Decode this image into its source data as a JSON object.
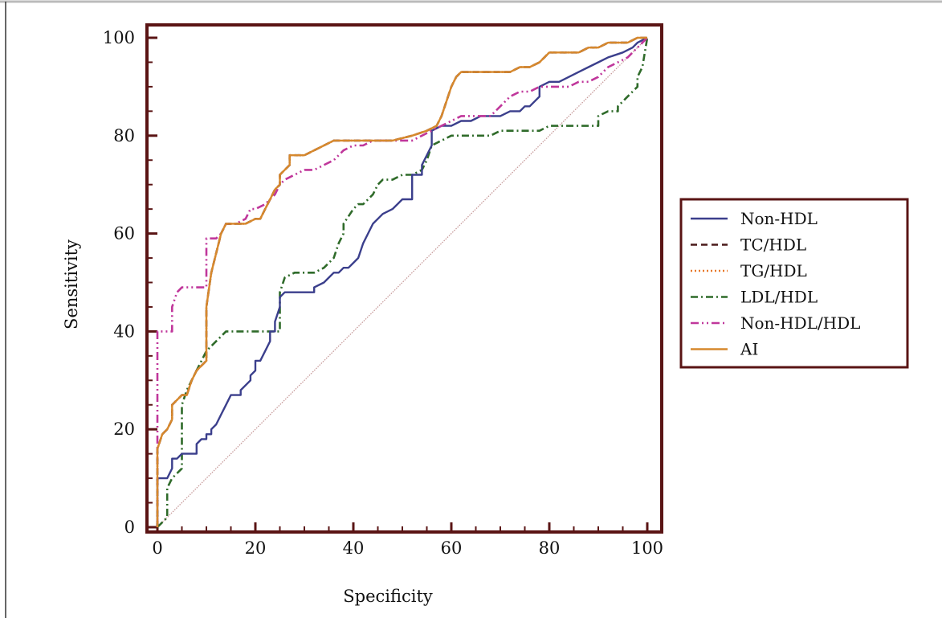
{
  "chart_data": {
    "type": "line",
    "title": "",
    "xlabel": "Specificity",
    "ylabel": "Sensitivity",
    "xlim": [
      0,
      100
    ],
    "ylim": [
      0,
      100
    ],
    "x_ticks": [
      "0",
      "20",
      "40",
      "60",
      "80",
      "100"
    ],
    "y_ticks": [
      "0",
      "20",
      "40",
      "60",
      "80",
      "100"
    ],
    "legend_position": "right",
    "frame_color": "#5a1414",
    "reference_line": {
      "x": [
        0,
        100
      ],
      "y": [
        0,
        100
      ],
      "color": "#c79a9a"
    },
    "series": [
      {
        "name": "Non-HDL",
        "color": "#3b3f8c",
        "dash": "solid",
        "x": [
          0,
          0,
          2,
          3,
          3,
          4,
          5,
          7,
          8,
          8,
          9,
          10,
          10,
          11,
          11,
          12,
          13,
          14,
          15,
          17,
          17,
          19,
          19,
          20,
          20,
          21,
          22,
          23,
          23,
          24,
          24,
          25,
          25,
          26,
          27,
          30,
          32,
          32,
          34,
          35,
          36,
          37,
          38,
          39,
          40,
          41,
          42,
          43,
          44,
          45,
          46,
          48,
          49,
          50,
          52,
          52,
          54,
          54,
          55,
          56,
          56,
          58,
          60,
          62,
          64,
          66,
          68,
          70,
          72,
          73,
          74,
          75,
          76,
          77,
          77,
          78,
          78,
          80,
          82,
          84,
          86,
          88,
          90,
          92,
          95,
          97,
          98,
          100
        ],
        "y": [
          0,
          10,
          10,
          12,
          14,
          14,
          15,
          15,
          15,
          17,
          18,
          18,
          19,
          19,
          20,
          21,
          23,
          25,
          27,
          27,
          28,
          30,
          31,
          32,
          34,
          34,
          36,
          38,
          40,
          40,
          42,
          45,
          47,
          48,
          48,
          48,
          48,
          49,
          50,
          51,
          52,
          52,
          53,
          53,
          54,
          55,
          58,
          60,
          62,
          63,
          64,
          65,
          66,
          67,
          67,
          72,
          72,
          74,
          76,
          78,
          81,
          82,
          82,
          83,
          83,
          84,
          84,
          84,
          85,
          85,
          85,
          86,
          86,
          87,
          87,
          88,
          90,
          91,
          91,
          92,
          93,
          94,
          95,
          96,
          97,
          98,
          99,
          100
        ]
      },
      {
        "name": "TC/HDL",
        "color": "#4a1a1a",
        "dash": "dashed",
        "x": [
          0,
          0,
          1,
          2,
          3,
          3,
          5,
          6,
          7,
          8,
          10,
          10,
          11,
          12,
          13,
          14,
          16,
          18,
          20,
          21,
          22,
          23,
          24,
          25,
          25,
          27,
          27,
          28,
          30,
          32,
          34,
          36,
          38,
          40,
          42,
          45,
          48,
          52,
          55,
          57,
          58,
          59,
          60,
          61,
          62,
          64,
          66,
          68,
          70,
          72,
          74,
          76,
          78,
          79,
          80,
          82,
          84,
          86,
          88,
          90,
          92,
          94,
          96,
          98,
          100
        ],
        "y": [
          0,
          16,
          19,
          20,
          22,
          25,
          27,
          27,
          30,
          32,
          34,
          45,
          52,
          56,
          60,
          62,
          62,
          62,
          63,
          63,
          65,
          67,
          69,
          70,
          72,
          74,
          76,
          76,
          76,
          77,
          78,
          79,
          79,
          79,
          79,
          79,
          79,
          80,
          81,
          82,
          84,
          87,
          90,
          92,
          93,
          93,
          93,
          93,
          93,
          93,
          94,
          94,
          95,
          96,
          97,
          97,
          97,
          97,
          98,
          98,
          99,
          99,
          99,
          100,
          100
        ]
      },
      {
        "name": "TG/HDL",
        "color": "#e8782a",
        "dash": "dotted",
        "x": [
          0,
          0,
          1,
          2,
          3,
          3,
          5,
          6,
          7,
          8,
          10,
          10,
          11,
          12,
          13,
          14,
          16,
          18,
          20,
          21,
          22,
          23,
          24,
          25,
          25,
          27,
          27,
          28,
          30,
          32,
          34,
          36,
          38,
          40,
          42,
          45,
          48,
          52,
          55,
          57,
          58,
          59,
          60,
          61,
          62,
          64,
          66,
          68,
          70,
          72,
          74,
          76,
          78,
          79,
          80,
          82,
          84,
          86,
          88,
          90,
          92,
          94,
          96,
          98,
          100
        ],
        "y": [
          0,
          16,
          19,
          20,
          22,
          25,
          27,
          27,
          30,
          32,
          34,
          45,
          52,
          56,
          60,
          62,
          62,
          62,
          63,
          63,
          65,
          67,
          69,
          70,
          72,
          74,
          76,
          76,
          76,
          77,
          78,
          79,
          79,
          79,
          79,
          79,
          79,
          80,
          81,
          82,
          84,
          87,
          90,
          92,
          93,
          93,
          93,
          93,
          93,
          93,
          94,
          94,
          95,
          96,
          97,
          97,
          97,
          97,
          98,
          98,
          99,
          99,
          99,
          100,
          100
        ]
      },
      {
        "name": "LDL/HDL",
        "color": "#2f6b2a",
        "dash": "dashdot",
        "x": [
          0,
          0,
          1,
          2,
          2,
          3,
          4,
          4,
          5,
          5,
          6,
          7,
          8,
          9,
          10,
          11,
          12,
          14,
          16,
          18,
          20,
          22,
          24,
          25,
          25,
          26,
          28,
          30,
          32,
          34,
          35,
          36,
          37,
          38,
          38,
          40,
          41,
          42,
          43,
          44,
          45,
          46,
          48,
          50,
          52,
          54,
          55,
          56,
          58,
          60,
          62,
          64,
          66,
          68,
          70,
          72,
          74,
          76,
          78,
          80,
          82,
          84,
          86,
          88,
          90,
          90,
          92,
          94,
          94,
          96,
          98,
          98,
          99,
          100
        ],
        "y": [
          0,
          0,
          1,
          2,
          8,
          10,
          11,
          11,
          12,
          25,
          28,
          30,
          32,
          34,
          36,
          37,
          38,
          40,
          40,
          40,
          40,
          40,
          40,
          40,
          48,
          51,
          52,
          52,
          52,
          53,
          54,
          55,
          58,
          60,
          62,
          65,
          66,
          66,
          67,
          68,
          70,
          71,
          71,
          72,
          72,
          73,
          75,
          78,
          79,
          80,
          80,
          80,
          80,
          80,
          81,
          81,
          81,
          81,
          81,
          82,
          82,
          82,
          82,
          82,
          82,
          84,
          85,
          85,
          86,
          88,
          90,
          92,
          94,
          100
        ]
      },
      {
        "name": "Non-HDL/HDL",
        "color": "#c0379b",
        "dash": "dashdotdot",
        "x": [
          0,
          0,
          0,
          1,
          2,
          3,
          3,
          4,
          5,
          6,
          8,
          10,
          10,
          11,
          12,
          13,
          14,
          15,
          16,
          18,
          19,
          20,
          22,
          24,
          25,
          26,
          28,
          30,
          32,
          34,
          36,
          38,
          40,
          42,
          44,
          46,
          48,
          50,
          52,
          54,
          56,
          58,
          60,
          62,
          64,
          66,
          68,
          70,
          72,
          74,
          76,
          78,
          80,
          82,
          84,
          86,
          88,
          90,
          92,
          94,
          96,
          98,
          100
        ],
        "y": [
          0,
          15,
          40,
          40,
          40,
          40,
          45,
          48,
          49,
          49,
          49,
          49,
          59,
          59,
          59,
          60,
          62,
          62,
          62,
          63,
          65,
          65,
          66,
          68,
          70,
          71,
          72,
          73,
          73,
          74,
          75,
          77,
          78,
          78,
          79,
          79,
          79,
          79,
          79,
          80,
          81,
          82,
          83,
          84,
          84,
          84,
          84,
          86,
          88,
          89,
          89,
          90,
          90,
          90,
          90,
          91,
          91,
          92,
          94,
          95,
          96,
          98,
          100
        ]
      },
      {
        "name": "AI",
        "color": "#d6892e",
        "dash": "solid",
        "x": [
          0,
          0,
          1,
          2,
          3,
          3,
          5,
          6,
          7,
          8,
          10,
          10,
          11,
          12,
          13,
          14,
          16,
          18,
          20,
          21,
          22,
          23,
          24,
          25,
          25,
          27,
          27,
          28,
          30,
          32,
          34,
          36,
          38,
          40,
          42,
          45,
          48,
          52,
          55,
          57,
          58,
          59,
          60,
          61,
          62,
          64,
          66,
          68,
          70,
          72,
          74,
          76,
          78,
          79,
          80,
          82,
          84,
          86,
          88,
          90,
          92,
          94,
          96,
          98,
          100
        ],
        "y": [
          0,
          16,
          19,
          20,
          22,
          25,
          27,
          27,
          30,
          32,
          34,
          45,
          52,
          56,
          60,
          62,
          62,
          62,
          63,
          63,
          65,
          67,
          69,
          70,
          72,
          74,
          76,
          76,
          76,
          77,
          78,
          79,
          79,
          79,
          79,
          79,
          79,
          80,
          81,
          82,
          84,
          87,
          90,
          92,
          93,
          93,
          93,
          93,
          93,
          93,
          94,
          94,
          95,
          96,
          97,
          97,
          97,
          97,
          98,
          98,
          99,
          99,
          99,
          100,
          100
        ]
      }
    ]
  }
}
